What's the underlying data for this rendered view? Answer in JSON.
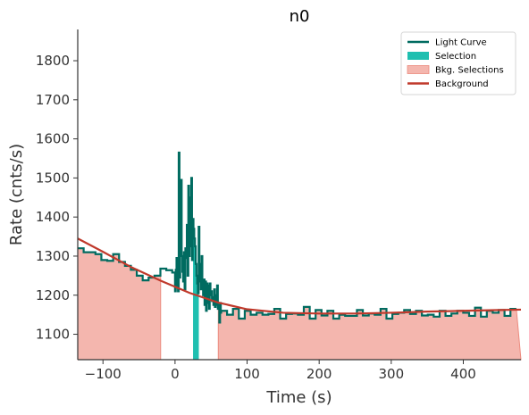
{
  "chart_data": {
    "type": "line",
    "title": "n0",
    "xlabel": "Time (s)",
    "ylabel": "Rate (cnts/s)",
    "xlim": [
      -135,
      480
    ],
    "ylim": [
      1035,
      1880
    ],
    "x_ticks": [
      -100,
      0,
      100,
      200,
      300,
      400
    ],
    "x_tick_labels": [
      "−100",
      "0",
      "100",
      "200",
      "300",
      "400"
    ],
    "y_ticks": [
      1100,
      1200,
      1300,
      1400,
      1500,
      1600,
      1700,
      1800
    ],
    "y_tick_labels": [
      "1100",
      "1200",
      "1300",
      "1400",
      "1500",
      "1600",
      "1700",
      "1800"
    ],
    "grid": false,
    "legend_position": "top-right",
    "legend": [
      {
        "label": "Light Curve",
        "color": "#006b60",
        "kind": "line"
      },
      {
        "label": "Selection",
        "color": "#1fbfb0",
        "kind": "patch"
      },
      {
        "label": "Bkg. Selections",
        "color": "#f4b6ae",
        "kind": "patch"
      },
      {
        "label": "Background",
        "color": "#c0392b",
        "kind": "line"
      }
    ],
    "bkg_selections": [
      [
        -135,
        -20
      ],
      [
        60,
        480
      ]
    ],
    "selection": [
      25,
      33
    ],
    "background_fit": [
      {
        "x": -135,
        "y": 1345
      },
      {
        "x": -100,
        "y": 1311
      },
      {
        "x": -60,
        "y": 1271
      },
      {
        "x": -20,
        "y": 1237
      },
      {
        "x": 20,
        "y": 1206
      },
      {
        "x": 60,
        "y": 1181
      },
      {
        "x": 100,
        "y": 1164
      },
      {
        "x": 150,
        "y": 1155
      },
      {
        "x": 200,
        "y": 1153
      },
      {
        "x": 250,
        "y": 1153
      },
      {
        "x": 300,
        "y": 1155
      },
      {
        "x": 350,
        "y": 1158
      },
      {
        "x": 400,
        "y": 1160
      },
      {
        "x": 450,
        "y": 1162
      },
      {
        "x": 480,
        "y": 1163
      }
    ],
    "light_curve_coarse": {
      "x0": -135,
      "width": 8.192,
      "values": [
        1320,
        1310,
        1310,
        1305,
        1290,
        1288,
        1305,
        1285,
        1275,
        1265,
        1250,
        1238,
        1245,
        1250,
        1268,
        1264,
        1258,
        1260,
        1270,
        1212
      ]
    },
    "light_curve_fine": {
      "x0": 0,
      "width": 1.024,
      "values": [
        1210,
        1265,
        1295,
        1220,
        1210,
        1565,
        1245,
        1355,
        1495,
        1300,
        1260,
        1235,
        1310,
        1215,
        1320,
        1295,
        1380,
        1250,
        1480,
        1300,
        1450,
        1325,
        1500,
        1290,
        1395,
        1370,
        1345,
        1325,
        1280,
        1250,
        1230,
        1205,
        1375,
        1280,
        1235,
        1215,
        1300,
        1230,
        1200,
        1240,
        1175,
        1235,
        1160,
        1230,
        1180,
        1225,
        1165,
        1230,
        1200,
        1210,
        1185,
        1195,
        1175,
        1215,
        1170,
        1200,
        1175,
        1225,
        1165,
        1175,
        1130,
        1180,
        1155
      ]
    },
    "light_curve_tail": {
      "x0": 64,
      "width": 8.192,
      "values": [
        1160,
        1150,
        1165,
        1140,
        1160,
        1150,
        1155,
        1150,
        1152,
        1165,
        1140,
        1152,
        1153,
        1150,
        1170,
        1140,
        1162,
        1148,
        1160,
        1140,
        1150,
        1147,
        1147,
        1162,
        1148,
        1153,
        1150,
        1165,
        1140,
        1152,
        1155,
        1162,
        1152,
        1160,
        1148,
        1150,
        1145,
        1160,
        1147,
        1153,
        1160,
        1155,
        1147,
        1168,
        1145,
        1160,
        1155,
        1162,
        1147,
        1165
      ]
    }
  }
}
